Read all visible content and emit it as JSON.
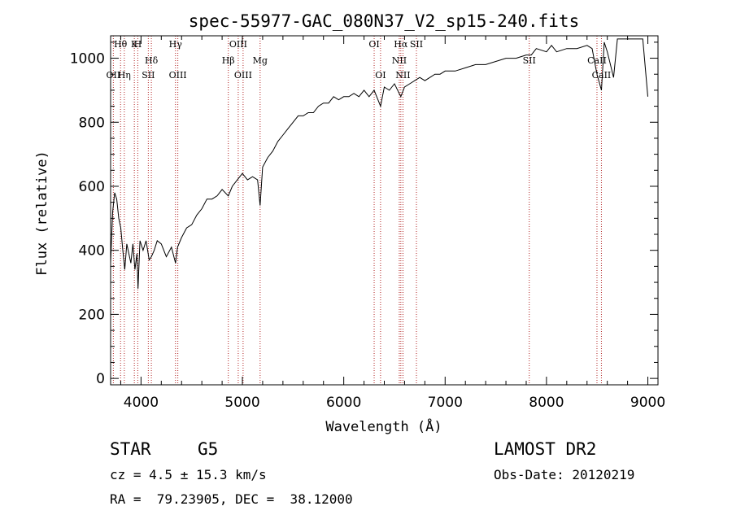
{
  "chart_data": {
    "type": "line",
    "title": "spec-55977-GAC_080N37_V2_sp15-240.fits",
    "xlabel": "Wavelength (Å)",
    "ylabel": "Flux (relative)",
    "xlim": [
      3700,
      9100
    ],
    "ylim": [
      -20,
      1070
    ],
    "x_ticks": [
      4000,
      5000,
      6000,
      7000,
      8000,
      9000
    ],
    "y_ticks": [
      0,
      200,
      400,
      600,
      800,
      1000
    ],
    "grid": false,
    "series": [
      {
        "x": [
          3700,
          3720,
          3740,
          3760,
          3780,
          3800,
          3820,
          3840,
          3860,
          3880,
          3900,
          3920,
          3940,
          3960,
          3970,
          3990,
          4020,
          4050,
          4080,
          4102,
          4130,
          4160,
          4200,
          4250,
          4300,
          4340,
          4360,
          4400,
          4450,
          4500,
          4550,
          4600,
          4650,
          4700,
          4750,
          4800,
          4861,
          4900,
          4950,
          5000,
          5050,
          5100,
          5150,
          5175,
          5200,
          5250,
          5300,
          5350,
          5400,
          5450,
          5500,
          5550,
          5600,
          5650,
          5700,
          5750,
          5800,
          5850,
          5900,
          5950,
          6000,
          6050,
          6100,
          6150,
          6200,
          6250,
          6300,
          6363,
          6400,
          6450,
          6500,
          6563,
          6600,
          6650,
          6700,
          6750,
          6800,
          6850,
          6900,
          6950,
          7000,
          7100,
          7200,
          7300,
          7400,
          7500,
          7600,
          7700,
          7800,
          7850,
          7900,
          8000,
          8050,
          8100,
          8200,
          8300,
          8400,
          8450,
          8498,
          8542,
          8570,
          8600,
          8662,
          8700,
          8800,
          8900,
          8950,
          9000
        ],
        "values": [
          360,
          520,
          580,
          560,
          500,
          470,
          400,
          340,
          420,
          390,
          360,
          420,
          340,
          390,
          280,
          430,
          400,
          430,
          370,
          380,
          400,
          430,
          420,
          380,
          410,
          360,
          410,
          440,
          470,
          480,
          510,
          530,
          560,
          560,
          570,
          590,
          570,
          600,
          620,
          640,
          620,
          630,
          620,
          540,
          660,
          690,
          710,
          740,
          760,
          780,
          800,
          820,
          820,
          830,
          830,
          850,
          860,
          860,
          880,
          870,
          880,
          880,
          890,
          880,
          900,
          880,
          900,
          850,
          910,
          900,
          920,
          880,
          910,
          920,
          930,
          940,
          930,
          940,
          950,
          950,
          960,
          960,
          970,
          980,
          980,
          990,
          1000,
          1000,
          1010,
          1010,
          1030,
          1020,
          1040,
          1020,
          1030,
          1030,
          1040,
          1030,
          950,
          900,
          1050,
          1020,
          940,
          1060,
          1060,
          1060,
          1060,
          880
        ]
      }
    ],
    "line_labels": [
      {
        "name": "Hθ",
        "wavelength": 3798
      },
      {
        "name": "OII",
        "wavelength": 3727
      },
      {
        "name": "H",
        "wavelength": 3968
      },
      {
        "name": "Hη",
        "wavelength": 3835
      },
      {
        "name": "K",
        "wavelength": 3934
      },
      {
        "name": "Hδ",
        "wavelength": 4102
      },
      {
        "name": "SII",
        "wavelength": 4072
      },
      {
        "name": "Hγ",
        "wavelength": 4340
      },
      {
        "name": "OIII",
        "wavelength": 4363
      },
      {
        "name": "OIII",
        "wavelength": 4959
      },
      {
        "name": "Hβ",
        "wavelength": 4861
      },
      {
        "name": "OIII",
        "wavelength": 5007
      },
      {
        "name": "Mg",
        "wavelength": 5175
      },
      {
        "name": "OI",
        "wavelength": 6300
      },
      {
        "name": "OI",
        "wavelength": 6363
      },
      {
        "name": "Hα",
        "wavelength": 6563
      },
      {
        "name": "SII",
        "wavelength": 6717
      },
      {
        "name": "NII",
        "wavelength": 6548
      },
      {
        "name": "NII",
        "wavelength": 6584
      },
      {
        "name": "SII",
        "wavelength": 7830
      },
      {
        "name": "CaII",
        "wavelength": 8498
      },
      {
        "name": "CaII",
        "wavelength": 8542
      }
    ]
  },
  "info": {
    "object_class": "STAR",
    "subclass": "G5",
    "survey": "LAMOST DR2",
    "redshift": "cz = 4.5 ± 15.3 km/s",
    "obs_date": "Obs-Date: 20120219",
    "coords": "RA =  79.23905, DEC =  38.12000"
  },
  "colors": {
    "line_marker": "#b22222",
    "spectrum": "#000000"
  }
}
